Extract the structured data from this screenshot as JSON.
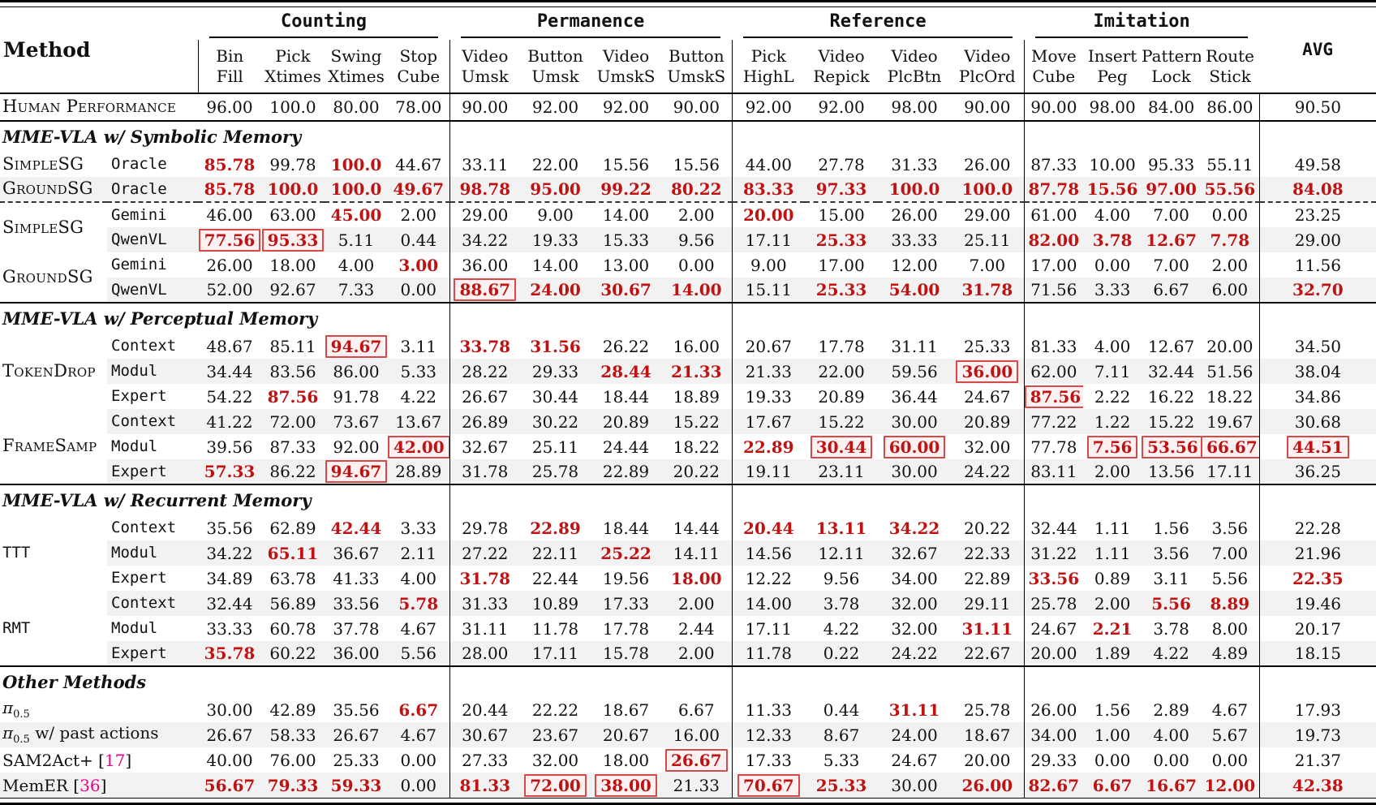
{
  "header": {
    "method_label": "Method",
    "avg_label": "AVG",
    "groups": [
      {
        "label": "Counting",
        "cols": [
          [
            "Bin",
            "Fill"
          ],
          [
            "Pick",
            "Xtimes"
          ],
          [
            "Swing",
            "Xtimes"
          ],
          [
            "Stop",
            "Cube"
          ]
        ]
      },
      {
        "label": "Permanence",
        "cols": [
          [
            "Video",
            "Umsk"
          ],
          [
            "Button",
            "Umsk"
          ],
          [
            "Video",
            "UmskS"
          ],
          [
            "Button",
            "UmskS"
          ]
        ]
      },
      {
        "label": "Reference",
        "cols": [
          [
            "Pick",
            "HighL"
          ],
          [
            "Video",
            "Repick"
          ],
          [
            "Video",
            "PlcBtn"
          ],
          [
            "Video",
            "PlcOrd"
          ]
        ]
      },
      {
        "label": "Imitation",
        "cols": [
          [
            "Move",
            "Cube"
          ],
          [
            "Insert",
            "Peg"
          ],
          [
            "Pattern",
            "Lock"
          ],
          [
            "Route",
            "Stick"
          ]
        ]
      }
    ]
  },
  "colors": {
    "highlight_red": "#bf1212",
    "box_border": "#d94848",
    "box_fill": "#fdf1f1",
    "row_stripe": "#f2f2f2",
    "citation_magenta": "#e5048c"
  },
  "legend_note": {
    "red_bold": "best value highlight",
    "boxed": "red-outlined highlight"
  },
  "body": [
    {
      "t": "row",
      "full": {
        "text": "Human Performance",
        "style": "sc"
      },
      "bb": true,
      "cells": [
        "96.00",
        "100.0",
        "80.00",
        "78.00",
        "90.00",
        "92.00",
        "92.00",
        "90.00",
        "92.00",
        "92.00",
        "98.00",
        "90.00",
        "90.00",
        "98.00",
        "84.00",
        "86.00",
        "90.50"
      ]
    },
    {
      "t": "sec",
      "title": "MME-VLA w/ Symbolic Memory"
    },
    {
      "t": "row",
      "g": {
        "text": "SimpleSG",
        "style": "sc",
        "span": 1
      },
      "variant": "Oracle",
      "cells": [
        "r:85.78",
        "99.78",
        "r:100.0",
        "44.67",
        "33.11",
        "22.00",
        "15.56",
        "15.56",
        "44.00",
        "27.78",
        "31.33",
        "26.00",
        "87.33",
        "10.00",
        "95.33",
        "55.11",
        "49.58"
      ]
    },
    {
      "t": "row",
      "g": {
        "text": "GroundSG",
        "style": "sc",
        "span": 1
      },
      "variant": "Oracle",
      "st": true,
      "cells": [
        "r:85.78",
        "r:100.0",
        "r:100.0",
        "r:49.67",
        "r:98.78",
        "r:95.00",
        "r:99.22",
        "r:80.22",
        "r:83.33",
        "r:97.33",
        "r:100.0",
        "r:100.0",
        "r:87.78",
        "r:15.56",
        "r:97.00",
        "r:55.56",
        "r:84.08"
      ]
    },
    {
      "t": "row",
      "g": {
        "text": "SimpleSG",
        "style": "sc",
        "span": 2
      },
      "variant": "Gemini",
      "dash": true,
      "cells": [
        "46.00",
        "63.00",
        "r:45.00",
        "2.00",
        "29.00",
        "9.00",
        "14.00",
        "2.00",
        "r:20.00",
        "15.00",
        "26.00",
        "29.00",
        "61.00",
        "4.00",
        "7.00",
        "0.00",
        "23.25"
      ]
    },
    {
      "t": "row",
      "variant": "QwenVL",
      "st": true,
      "cells": [
        "b:77.56",
        "b:95.33",
        "5.11",
        "0.44",
        "34.22",
        "19.33",
        "15.33",
        "9.56",
        "17.11",
        "r:25.33",
        "33.33",
        "25.11",
        "r:82.00",
        "r:3.78",
        "r:12.67",
        "r:7.78",
        "29.00"
      ]
    },
    {
      "t": "row",
      "g": {
        "text": "GroundSG",
        "style": "sc",
        "span": 2
      },
      "variant": "Gemini",
      "cells": [
        "26.00",
        "18.00",
        "4.00",
        "r:3.00",
        "36.00",
        "14.00",
        "13.00",
        "0.00",
        "9.00",
        "17.00",
        "12.00",
        "7.00",
        "17.00",
        "0.00",
        "7.00",
        "2.00",
        "11.56"
      ]
    },
    {
      "t": "row",
      "variant": "QwenVL",
      "st": true,
      "cells": [
        "52.00",
        "92.67",
        "7.33",
        "0.00",
        "b:88.67",
        "r:24.00",
        "r:30.67",
        "r:14.00",
        "15.11",
        "r:25.33",
        "r:54.00",
        "r:31.78",
        "71.56",
        "3.33",
        "6.67",
        "6.00",
        "r:32.70"
      ]
    },
    {
      "t": "sec",
      "title": "MME-VLA w/ Perceptual Memory"
    },
    {
      "t": "row",
      "g": {
        "text": "TokenDrop",
        "style": "sc",
        "span": 3
      },
      "variant": "Context",
      "cells": [
        "48.67",
        "85.11",
        "b:94.67",
        "3.11",
        "r:33.78",
        "r:31.56",
        "26.22",
        "16.00",
        "20.67",
        "17.78",
        "31.11",
        "25.33",
        "81.33",
        "4.00",
        "12.67",
        "20.00",
        "34.50"
      ]
    },
    {
      "t": "row",
      "variant": "Modul",
      "st": true,
      "cells": [
        "34.44",
        "83.56",
        "86.00",
        "5.33",
        "28.22",
        "29.33",
        "r:28.44",
        "r:21.33",
        "21.33",
        "22.00",
        "59.56",
        "b:36.00",
        "62.00",
        "7.11",
        "32.44",
        "51.56",
        "38.04"
      ]
    },
    {
      "t": "row",
      "variant": "Expert",
      "cells": [
        "54.22",
        "r:87.56",
        "91.78",
        "4.22",
        "26.67",
        "30.44",
        "18.44",
        "18.89",
        "19.33",
        "20.89",
        "36.44",
        "24.67",
        "b:87.56",
        "2.22",
        "16.22",
        "18.22",
        "34.86"
      ]
    },
    {
      "t": "row",
      "g": {
        "text": "FrameSamp",
        "style": "sc",
        "span": 3
      },
      "variant": "Context",
      "st": true,
      "cells": [
        "41.22",
        "72.00",
        "73.67",
        "13.67",
        "26.89",
        "30.22",
        "20.89",
        "15.22",
        "17.67",
        "15.22",
        "30.00",
        "20.89",
        "77.22",
        "1.22",
        "15.22",
        "19.67",
        "30.68"
      ]
    },
    {
      "t": "row",
      "variant": "Modul",
      "cells": [
        "39.56",
        "87.33",
        "92.00",
        "b:42.00",
        "32.67",
        "25.11",
        "24.44",
        "18.22",
        "r:22.89",
        "b:30.44",
        "b:60.00",
        "32.00",
        "77.78",
        "b:7.56",
        "b:53.56",
        "b:66.67",
        "b:44.51"
      ]
    },
    {
      "t": "row",
      "variant": "Expert",
      "st": true,
      "cells": [
        "r:57.33",
        "86.22",
        "b:94.67",
        "28.89",
        "31.78",
        "25.78",
        "22.89",
        "20.22",
        "19.11",
        "23.11",
        "30.00",
        "24.22",
        "83.11",
        "2.00",
        "13.56",
        "17.11",
        "36.25"
      ]
    },
    {
      "t": "sec",
      "title": "MME-VLA w/ Recurrent Memory"
    },
    {
      "t": "row",
      "g": {
        "text": "TTT",
        "style": "mono",
        "span": 3
      },
      "variant": "Context",
      "cells": [
        "35.56",
        "62.89",
        "r:42.44",
        "3.33",
        "29.78",
        "r:22.89",
        "18.44",
        "14.44",
        "r:20.44",
        "r:13.11",
        "r:34.22",
        "20.22",
        "32.44",
        "1.11",
        "1.56",
        "3.56",
        "22.28"
      ]
    },
    {
      "t": "row",
      "variant": "Modul",
      "st": true,
      "cells": [
        "34.22",
        "r:65.11",
        "36.67",
        "2.11",
        "27.22",
        "22.11",
        "r:25.22",
        "14.11",
        "14.56",
        "12.11",
        "32.67",
        "22.33",
        "31.22",
        "1.11",
        "3.56",
        "7.00",
        "21.96"
      ]
    },
    {
      "t": "row",
      "variant": "Expert",
      "cells": [
        "34.89",
        "63.78",
        "41.33",
        "4.00",
        "r:31.78",
        "22.44",
        "19.56",
        "r:18.00",
        "12.22",
        "9.56",
        "34.00",
        "22.89",
        "r:33.56",
        "0.89",
        "3.11",
        "5.56",
        "r:22.35"
      ]
    },
    {
      "t": "row",
      "g": {
        "text": "RMT",
        "style": "mono",
        "span": 3
      },
      "variant": "Context",
      "st": true,
      "cells": [
        "32.44",
        "56.89",
        "33.56",
        "r:5.78",
        "31.33",
        "10.89",
        "17.33",
        "2.00",
        "14.00",
        "3.78",
        "32.00",
        "29.11",
        "25.78",
        "2.00",
        "r:5.56",
        "r:8.89",
        "19.46"
      ]
    },
    {
      "t": "row",
      "variant": "Modul",
      "cells": [
        "33.33",
        "60.78",
        "37.78",
        "4.67",
        "31.11",
        "11.78",
        "17.78",
        "2.44",
        "17.11",
        "4.22",
        "32.00",
        "r:31.11",
        "24.67",
        "r:2.21",
        "3.78",
        "8.00",
        "20.17"
      ]
    },
    {
      "t": "row",
      "variant": "Expert",
      "st": true,
      "cells": [
        "r:35.78",
        "60.22",
        "36.00",
        "5.56",
        "28.00",
        "17.11",
        "15.78",
        "2.00",
        "11.78",
        "0.22",
        "24.22",
        "22.67",
        "20.00",
        "1.89",
        "4.22",
        "4.89",
        "18.15"
      ]
    },
    {
      "t": "sec",
      "title": "Other Methods"
    },
    {
      "t": "row",
      "full": {
        "pi": "π",
        "sub": "0.5",
        "rest": ""
      },
      "cells": [
        "30.00",
        "42.89",
        "35.56",
        "r:6.67",
        "20.44",
        "22.22",
        "18.67",
        "6.67",
        "11.33",
        "0.44",
        "r:31.11",
        "25.78",
        "26.00",
        "1.56",
        "2.89",
        "4.67",
        "17.93"
      ]
    },
    {
      "t": "row",
      "full": {
        "pi": "π",
        "sub": "0.5",
        "rest": " w/ past actions"
      },
      "st": true,
      "cells": [
        "26.67",
        "58.33",
        "26.67",
        "4.67",
        "30.67",
        "23.67",
        "20.67",
        "16.00",
        "12.33",
        "8.67",
        "24.00",
        "18.67",
        "34.00",
        "1.00",
        "4.00",
        "5.67",
        "19.73"
      ]
    },
    {
      "t": "row",
      "full": {
        "text": "SAM2Act+ ",
        "cite": "17"
      },
      "cells": [
        "40.00",
        "76.00",
        "25.33",
        "0.00",
        "27.33",
        "32.00",
        "18.00",
        "b:26.67",
        "17.33",
        "5.33",
        "24.67",
        "20.00",
        "29.33",
        "0.00",
        "0.00",
        "0.00",
        "21.37"
      ]
    },
    {
      "t": "row",
      "full": {
        "text": "MemER ",
        "cite": "36"
      },
      "st": true,
      "cells": [
        "r:56.67",
        "r:79.33",
        "r:59.33",
        "0.00",
        "r:81.33",
        "b:72.00",
        "b:38.00",
        "21.33",
        "b:70.67",
        "r:25.33",
        "30.00",
        "r:26.00",
        "r:82.67",
        "r:6.67",
        "r:16.67",
        "r:12.00",
        "r:42.38"
      ]
    }
  ]
}
